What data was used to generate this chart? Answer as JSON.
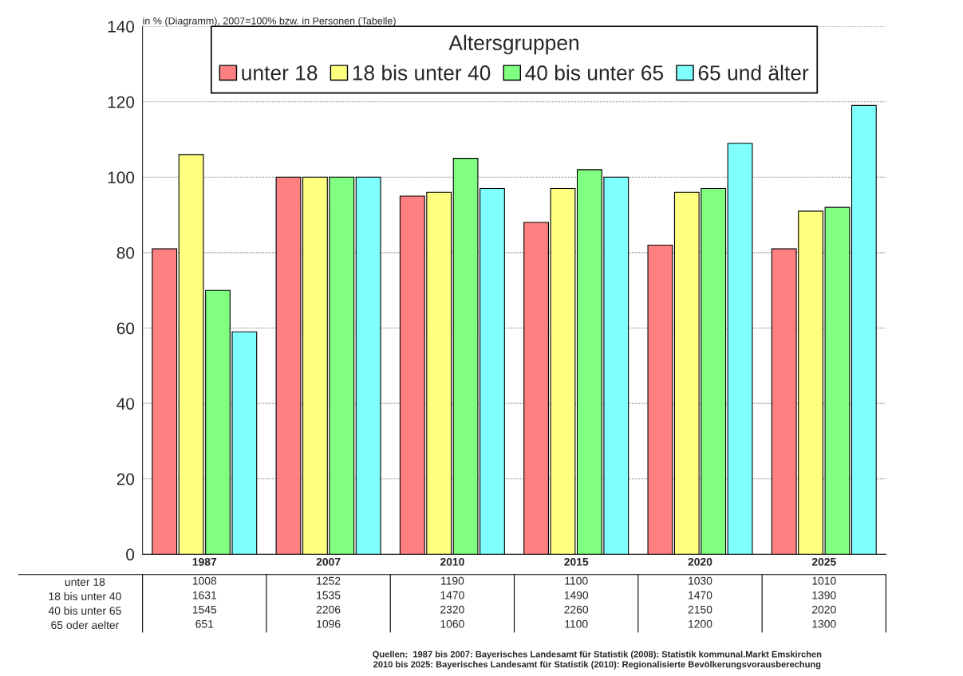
{
  "chart_data": [
    {
      "type": "bar",
      "categories": [
        "1987",
        "2007",
        "2010",
        "2015",
        "2020",
        "2025"
      ],
      "series": [
        {
          "name": "unter 18",
          "color": "#ff8080",
          "values": [
            81,
            100,
            95,
            88,
            82,
            81
          ]
        },
        {
          "name": "18 bis unter 40",
          "color": "#ffff80",
          "values": [
            106,
            100,
            96,
            97,
            96,
            91
          ]
        },
        {
          "name": "40 bis unter 65",
          "color": "#80ff80",
          "values": [
            70,
            100,
            105,
            102,
            97,
            92
          ]
        },
        {
          "name": "65 und älter",
          "color": "#80ffff",
          "values": [
            59,
            100,
            97,
            100,
            109,
            119
          ]
        }
      ],
      "legend_title": "Altersgruppen",
      "legend": "top",
      "tick_labels": "y",
      "ylim": [
        0,
        140
      ],
      "yticks": [
        0,
        20,
        40,
        60,
        80,
        100,
        120,
        140
      ],
      "grid": "y",
      "annotations": [
        "in % (Diagramm), 2007=100% bzw. in Personen (Tabelle)",
        "Quellen:  1987 bis 2007: Bayerisches Landesamt für Statistik (2008): Statistik kommunal.Markt Emskirchen",
        "2010 bis 2025: Bayerisches Landesamt für Statistik (2010): Regionalisierte Bevölkerungsvorausberechung"
      ]
    },
    {
      "type": "heatmap",
      "categories": [
        "1987",
        "2007",
        "2010",
        "2015",
        "2020",
        "2025"
      ],
      "y_categories": [
        "unter 18",
        "18 bis unter 40",
        "40 bis unter 65",
        "65 oder aelter"
      ],
      "cells": [
        [
          1008,
          1252,
          1190,
          1100,
          1030,
          1010
        ],
        [
          1631,
          1535,
          1470,
          1490,
          1470,
          1390
        ],
        [
          1545,
          2206,
          2320,
          2260,
          2150,
          2020
        ],
        [
          651,
          1096,
          1060,
          1100,
          1200,
          1300
        ]
      ],
      "data_labels": true
    }
  ]
}
